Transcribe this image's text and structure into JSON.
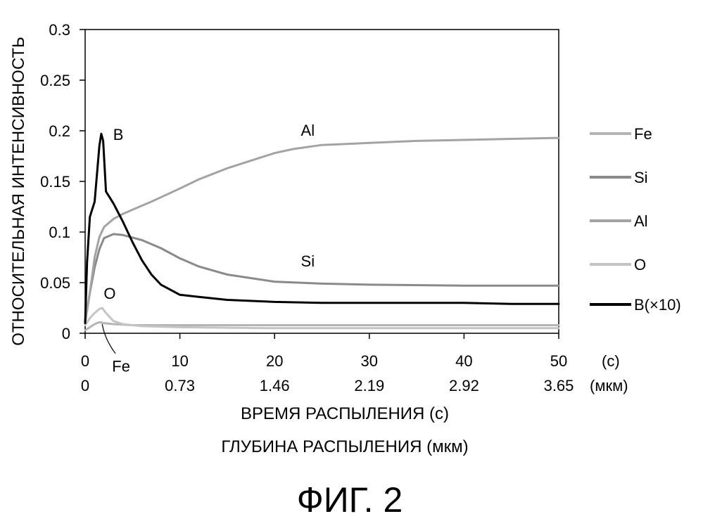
{
  "figure_caption": "ФИГ. 2",
  "chart_data": {
    "type": "line",
    "ylabel": "ОТНОСИТЕЛЬНАЯ ИНТЕНСИВНОСТЬ",
    "xlabel": "ВРЕМЯ РАСПЫЛЕНИЯ (с)",
    "xlabel2": "ГЛУБИНА РАСПЫЛЕНИЯ (мкм)",
    "xlim": [
      0,
      50
    ],
    "ylim": [
      0,
      0.3
    ],
    "grid": false,
    "legend_position": "right",
    "x_ticks": [
      0,
      10,
      20,
      30,
      40,
      50
    ],
    "x_tick_labels": [
      "0",
      "10",
      "20",
      "30",
      "40",
      "50"
    ],
    "x_unit_label": "(с)",
    "x2_tick_labels": [
      "0",
      "0.73",
      "1.46",
      "2.19",
      "2.92",
      "3.65"
    ],
    "x2_unit_label": "(мкм)",
    "y_ticks": [
      0,
      0.05,
      0.1,
      0.15,
      0.2,
      0.25,
      0.3
    ],
    "y_tick_labels": [
      "0",
      "0.05",
      "0.1",
      "0.15",
      "0.2",
      "0.25",
      "0.3"
    ],
    "series": [
      {
        "name": "Fe",
        "color": "#b4b4b4",
        "width": 3,
        "x": [
          0,
          0.5,
          1,
          1.5,
          2,
          3,
          5,
          10,
          20,
          30,
          40,
          50
        ],
        "y": [
          0.003,
          0.006,
          0.009,
          0.011,
          0.01,
          0.009,
          0.008,
          0.008,
          0.008,
          0.008,
          0.008,
          0.008
        ]
      },
      {
        "name": "Si",
        "color": "#8a8a8a",
        "width": 3,
        "x": [
          0,
          0.5,
          1,
          1.5,
          2,
          3,
          4,
          6,
          8,
          10,
          12,
          15,
          20,
          25,
          30,
          40,
          50
        ],
        "y": [
          0.012,
          0.04,
          0.065,
          0.083,
          0.094,
          0.098,
          0.097,
          0.092,
          0.084,
          0.074,
          0.066,
          0.058,
          0.051,
          0.049,
          0.048,
          0.047,
          0.047
        ]
      },
      {
        "name": "Al",
        "color": "#a3a3a3",
        "width": 3,
        "x": [
          0,
          0.5,
          1,
          1.5,
          2,
          3,
          4,
          5,
          7,
          10,
          12,
          15,
          18,
          20,
          22,
          25,
          30,
          35,
          40,
          45,
          50
        ],
        "y": [
          0.01,
          0.04,
          0.075,
          0.095,
          0.105,
          0.113,
          0.118,
          0.122,
          0.13,
          0.143,
          0.152,
          0.163,
          0.172,
          0.178,
          0.182,
          0.186,
          0.188,
          0.19,
          0.191,
          0.192,
          0.193
        ]
      },
      {
        "name": "O",
        "color": "#c4c4c4",
        "width": 3,
        "x": [
          0,
          0.5,
          1,
          1.5,
          1.8,
          2.2,
          3,
          4,
          6,
          10,
          20,
          30,
          40,
          50
        ],
        "y": [
          0.008,
          0.015,
          0.02,
          0.024,
          0.025,
          0.02,
          0.012,
          0.009,
          0.007,
          0.006,
          0.005,
          0.005,
          0.005,
          0.005
        ]
      },
      {
        "name": "B(×10)",
        "color": "#000000",
        "width": 3,
        "x": [
          0,
          0.2,
          0.5,
          1,
          1.5,
          1.7,
          1.9,
          2.2,
          2.4,
          3,
          4,
          5,
          6,
          7,
          8,
          9,
          10,
          12,
          15,
          20,
          25,
          30,
          35,
          40,
          45,
          50
        ],
        "y": [
          0.01,
          0.07,
          0.115,
          0.13,
          0.185,
          0.197,
          0.19,
          0.14,
          0.137,
          0.128,
          0.11,
          0.09,
          0.072,
          0.058,
          0.048,
          0.043,
          0.038,
          0.036,
          0.033,
          0.031,
          0.03,
          0.03,
          0.03,
          0.03,
          0.029,
          0.029
        ]
      }
    ],
    "annotations": [
      {
        "text": "B",
        "x": 3.5,
        "y": 0.191
      },
      {
        "text": "Al",
        "x": 23.5,
        "y": 0.195
      },
      {
        "text": "Si",
        "x": 23.5,
        "y": 0.066
      },
      {
        "text": "O",
        "x": 2.6,
        "y": 0.034
      },
      {
        "text": "Fe",
        "x": 3.8,
        "y": -0.038
      }
    ]
  }
}
